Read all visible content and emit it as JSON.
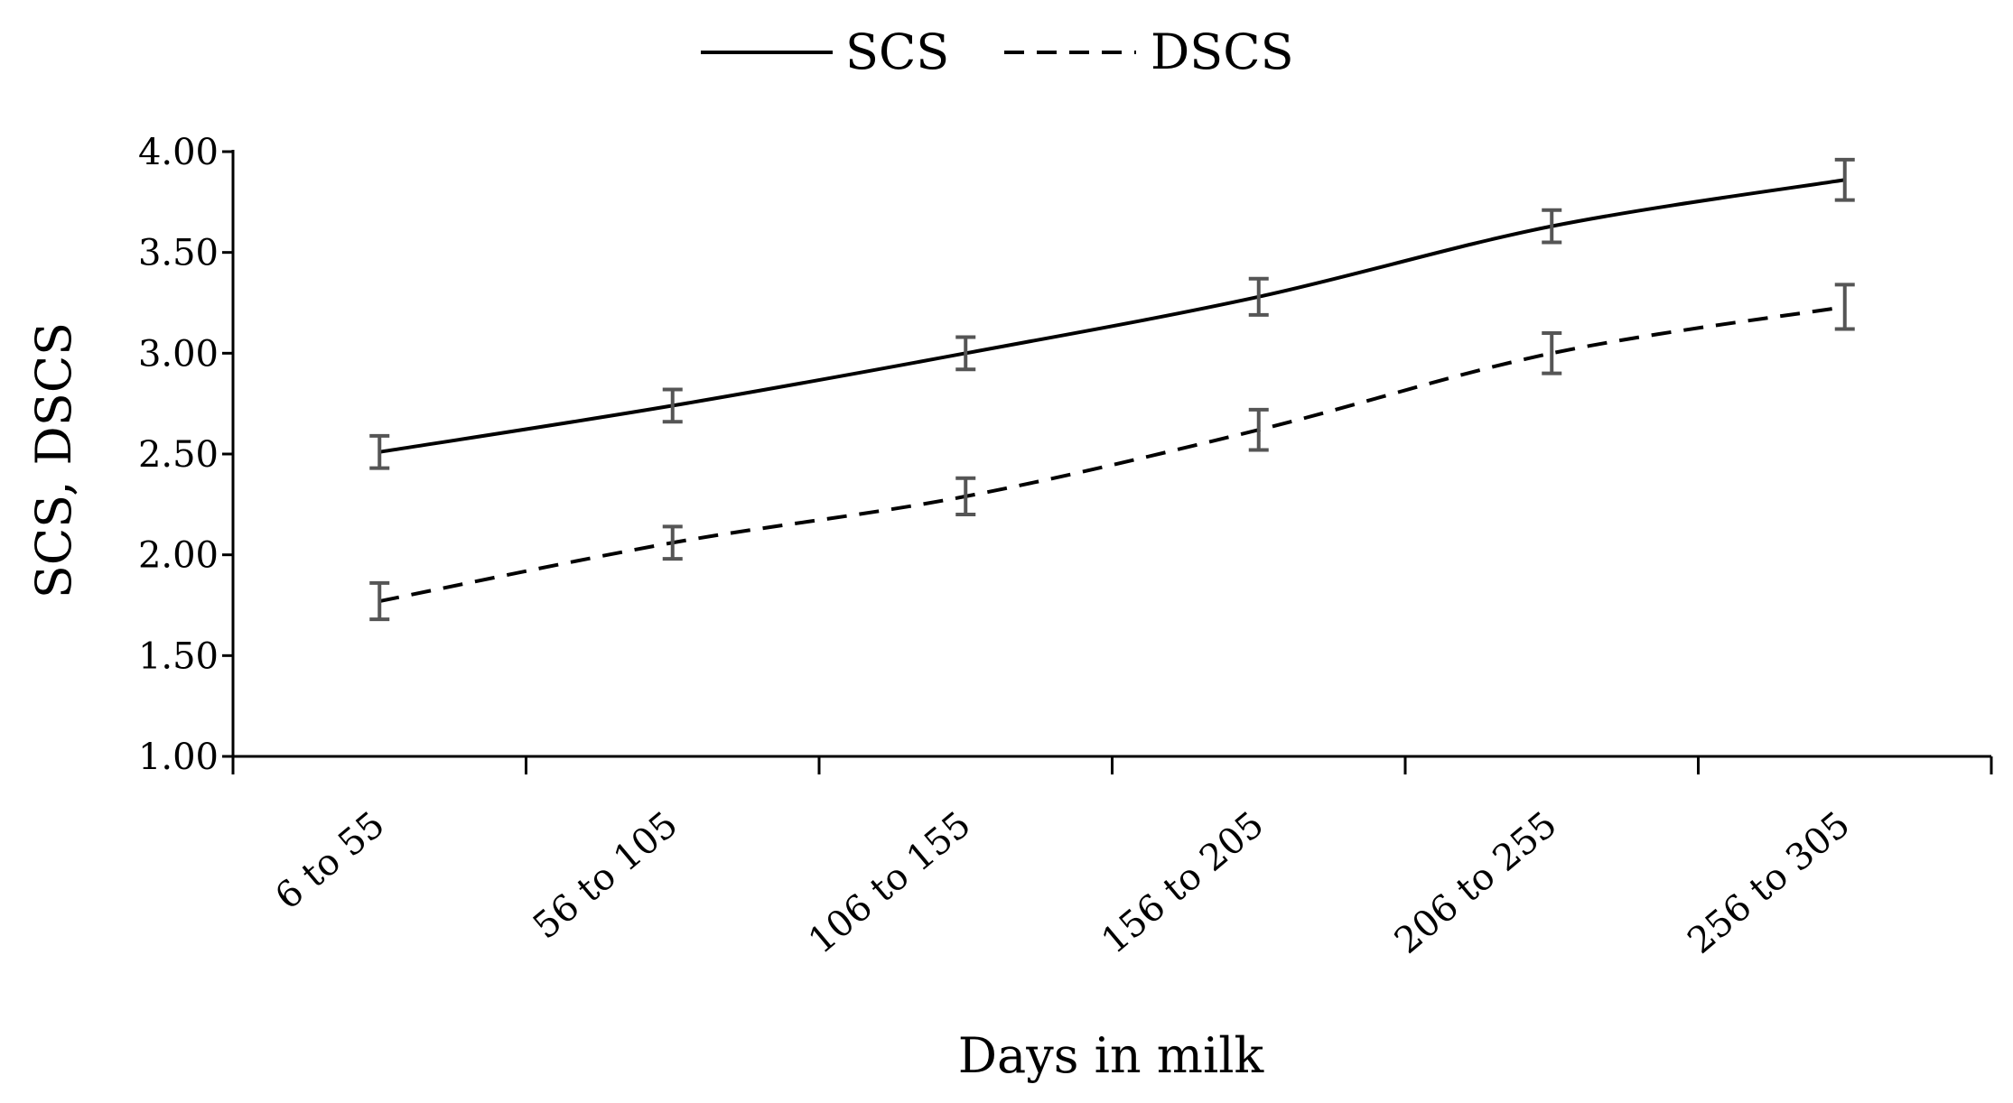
{
  "chart_data": {
    "type": "line",
    "title": "",
    "xlabel": "Days in milk",
    "ylabel": "SCS, DSCS",
    "categories": [
      "6 to 55",
      "56 to 105",
      "106 to 155",
      "156 to 205",
      "206 to 255",
      "256 to 305"
    ],
    "ylim": [
      1.0,
      4.0
    ],
    "yticks": [
      1.0,
      1.5,
      2.0,
      2.5,
      3.0,
      3.5,
      4.0
    ],
    "ytick_labels": [
      "1.00",
      "1.50",
      "2.00",
      "2.50",
      "3.00",
      "3.50",
      "4.00"
    ],
    "grid": false,
    "legend_position": "top-center",
    "series": [
      {
        "name": "SCS",
        "style": "solid",
        "values": [
          2.51,
          2.74,
          3.0,
          3.28,
          3.63,
          3.86
        ],
        "errors": [
          0.08,
          0.08,
          0.08,
          0.09,
          0.08,
          0.1
        ]
      },
      {
        "name": "DSCS",
        "style": "dashed",
        "values": [
          1.77,
          2.06,
          2.29,
          2.62,
          3.0,
          3.23
        ],
        "errors": [
          0.09,
          0.08,
          0.09,
          0.1,
          0.1,
          0.11
        ]
      }
    ],
    "colors": {
      "line": "#000000",
      "error_bar": "#555555",
      "axis": "#000000"
    }
  }
}
